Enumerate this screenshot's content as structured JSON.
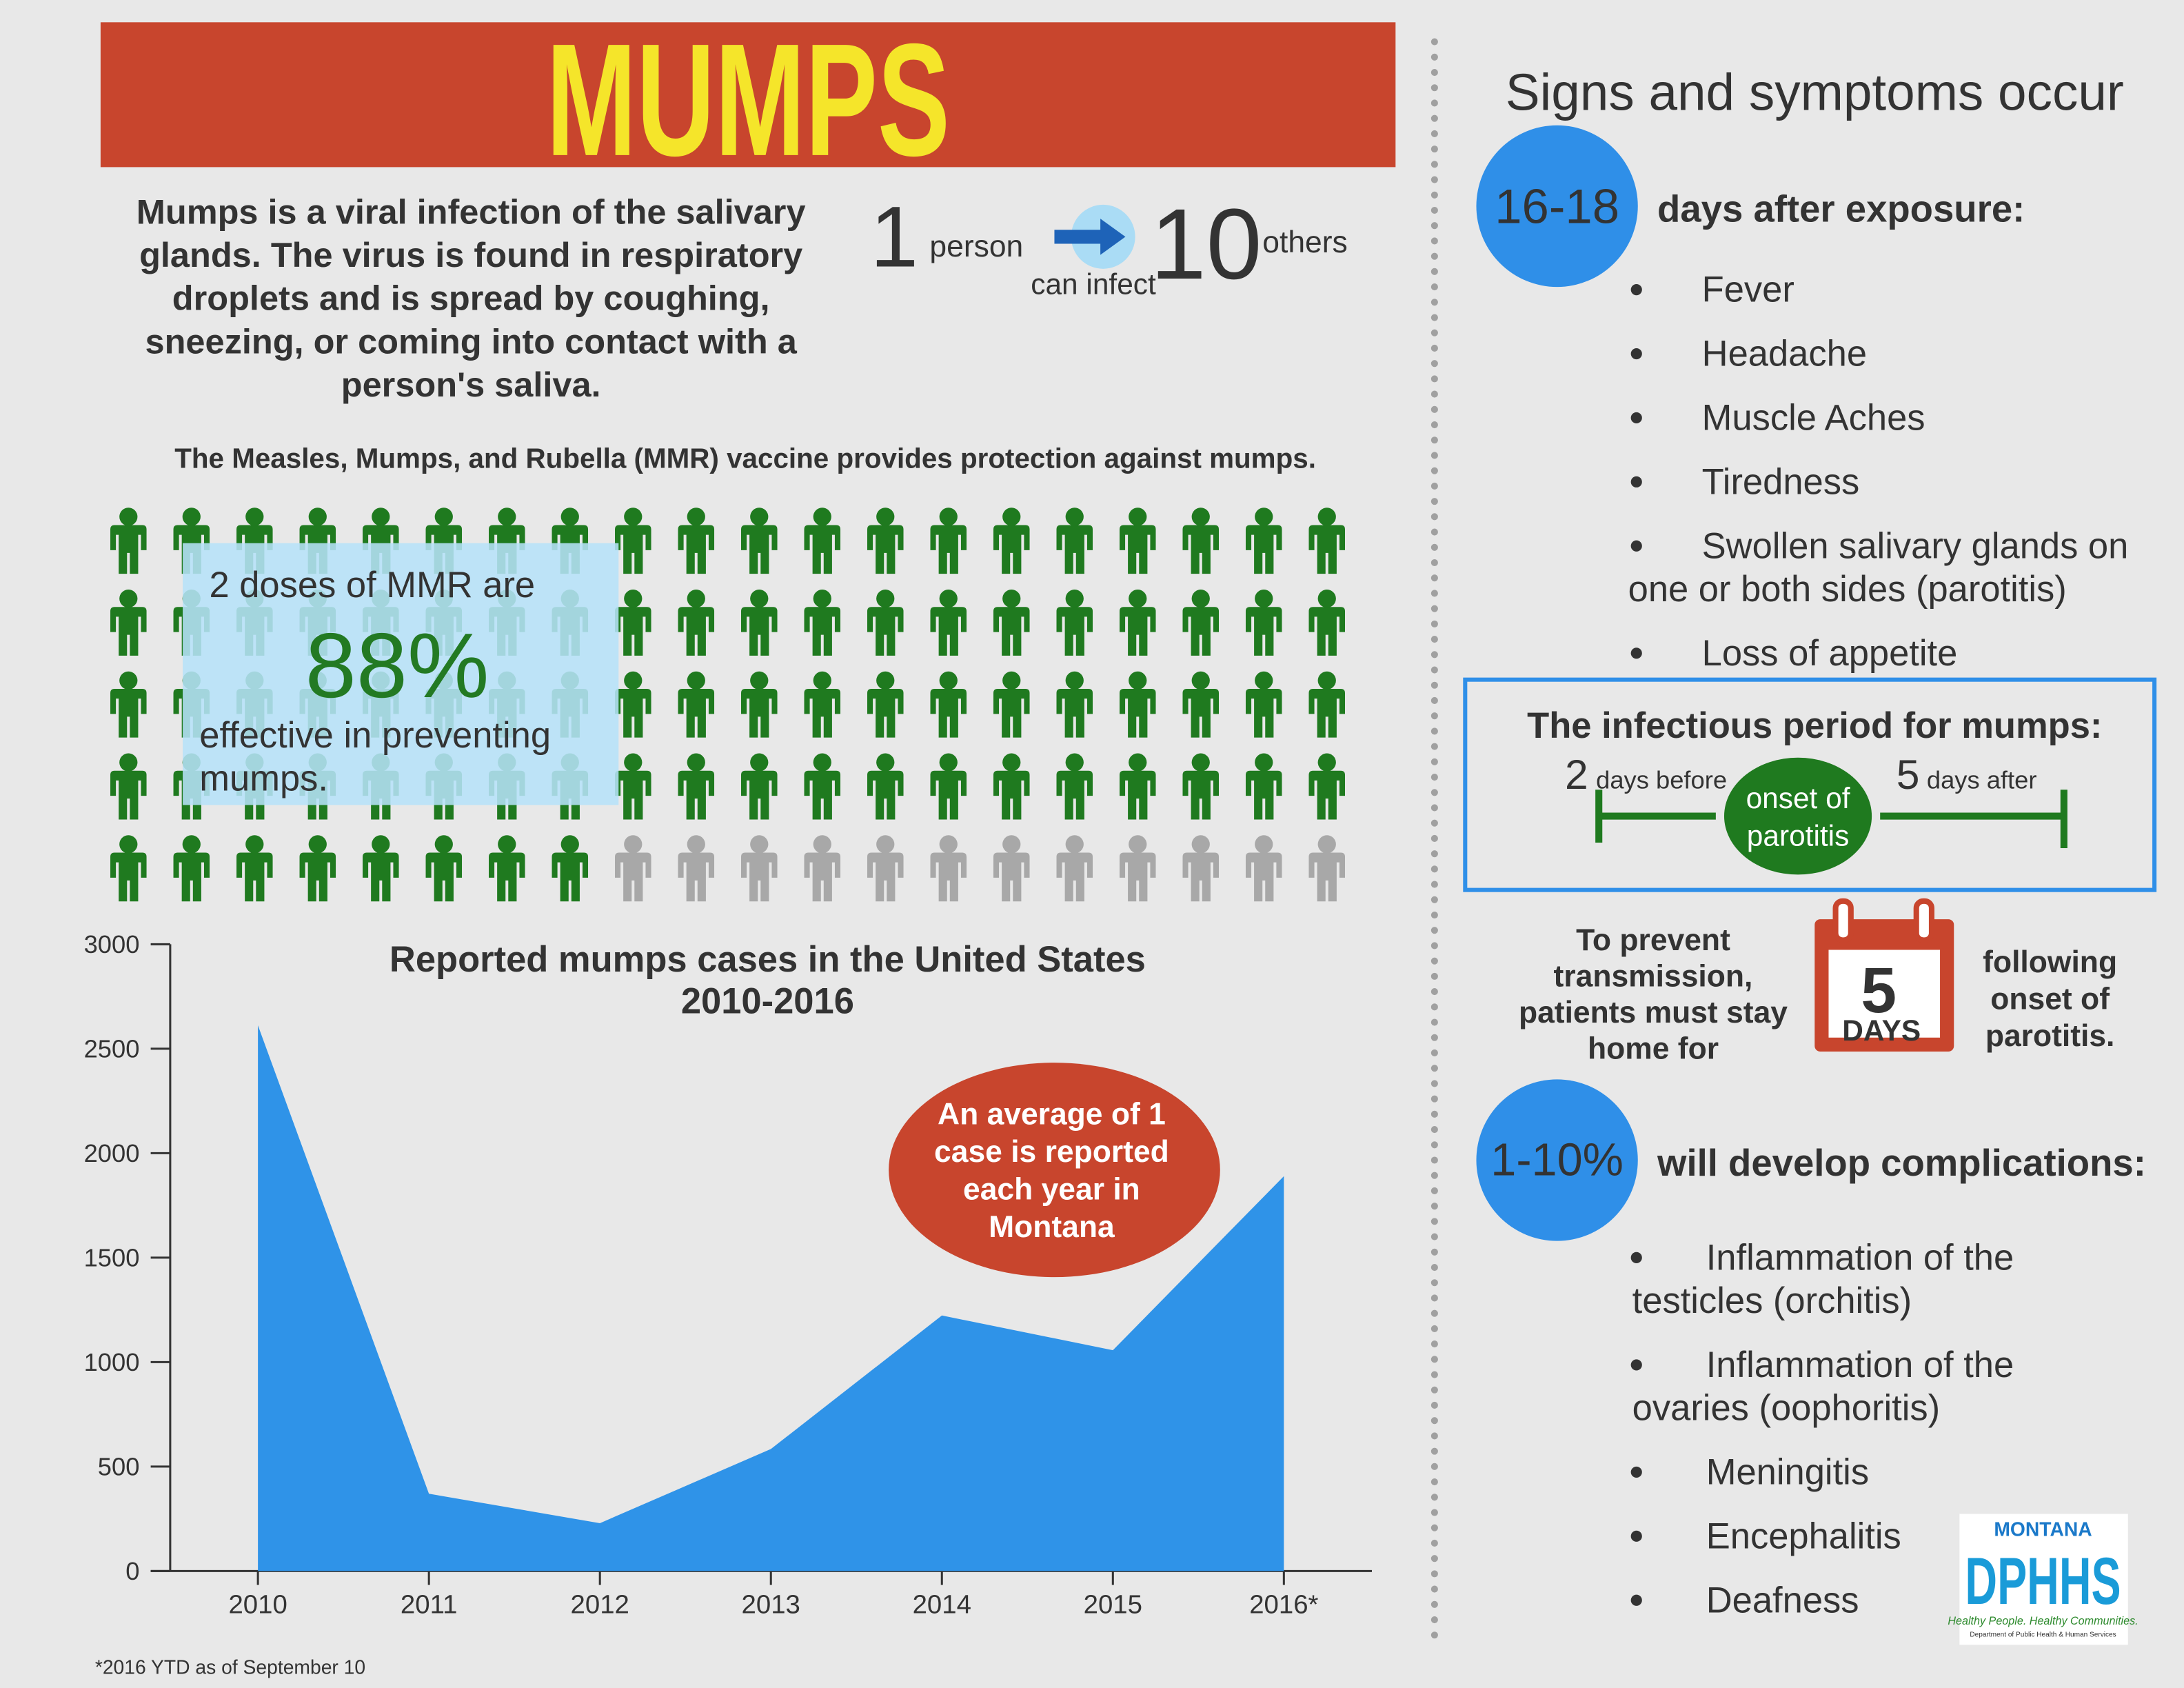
{
  "header": {
    "title": "MUMPS"
  },
  "intro": {
    "lines": [
      "Mumps is a viral infection of the salivary",
      "glands. The virus is found in respiratory",
      "droplets and is spread by coughing,",
      "sneezing, or coming into contact with a",
      "person's saliva."
    ]
  },
  "spread": {
    "count": 1,
    "person": "person",
    "can_infect": "can infect",
    "others_count": 10,
    "others": "others"
  },
  "vaccine": {
    "statement": "The Measles, Mumps, and Rubella (MMR) vaccine provides protection against mumps.",
    "lead": "2 doses of MMR are",
    "effectiveness": {
      "value": 88,
      "label": "88%"
    },
    "tail": [
      "effective in preventing",
      "mumps."
    ],
    "protected_color": "#1f7a1f",
    "unprotected_color": "#a8a8a8"
  },
  "chart_data": {
    "type": "area",
    "title": "Reported mumps cases in the United States",
    "subtitle": "2010-2016",
    "categories": [
      "2010",
      "2011",
      "2012",
      "2013",
      "2014",
      "2015",
      "2016*"
    ],
    "values": [
      2612,
      370,
      229,
      584,
      1223,
      1057,
      1890
    ],
    "color": "#2f93e8",
    "ylim": [
      0,
      3000
    ],
    "yticks": [
      0,
      500,
      1000,
      1500,
      2000,
      2500,
      3000
    ],
    "annotation": [
      "An average of 1",
      "case is reported",
      "each year in",
      "Montana"
    ],
    "footnote": "*2016 YTD as of September 10"
  },
  "symptoms": {
    "heading": "Signs and symptoms occur",
    "onset": "16-18",
    "onset_text": "days after exposure:",
    "items": [
      [
        "Fever"
      ],
      [
        "Headache"
      ],
      [
        "Muscle Aches"
      ],
      [
        "Tiredness"
      ],
      [
        "Swollen salivary glands on",
        "one or both sides (parotitis)"
      ],
      [
        "Loss of appetite"
      ]
    ]
  },
  "infectious": {
    "title": "The infectious period for mumps:",
    "before_count": 2,
    "before": "days before",
    "onset": [
      "onset of",
      "parotitis"
    ],
    "after_count": 5,
    "after": "days after"
  },
  "isolation": {
    "left": [
      "To prevent",
      "transmission,",
      "patients must stay",
      "home for"
    ],
    "days": 5,
    "days_label": "DAYS",
    "right": [
      "following",
      "onset of",
      "parotitis."
    ]
  },
  "complications": {
    "rate": "1-10%",
    "text": "will develop complications:",
    "items": [
      [
        "Inflammation of the",
        "testicles (orchitis)"
      ],
      [
        "Inflammation of the",
        "ovaries (oophoritis)"
      ],
      [
        "Meningitis"
      ],
      [
        "Encephalitis"
      ],
      [
        "Deafness"
      ]
    ]
  },
  "logo": {
    "name": "MONTANA",
    "org": "DPHHS",
    "tagline": "Healthy People. Healthy Communities.",
    "full": "Department of Public Health & Human Services"
  }
}
